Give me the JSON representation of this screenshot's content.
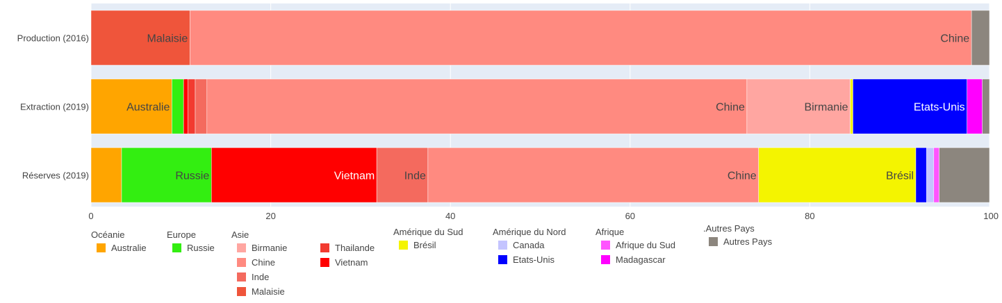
{
  "chart_data": {
    "type": "bar",
    "orientation": "horizontal",
    "barmode": "stack",
    "categories": [
      "Production (2016)",
      "Extraction (2019)",
      "Réserves (2019)"
    ],
    "xlim": [
      0,
      100
    ],
    "xticks": [
      0,
      20,
      40,
      60,
      80,
      100
    ],
    "grid": true,
    "legend_position": "bottom",
    "segments": [
      {
        "category": 0,
        "name": "Malaisie",
        "group": "Asie",
        "color": "#EF553B",
        "x0": 0.0,
        "x1": 11.0,
        "label": "Malaisie",
        "label_color": "#444444"
      },
      {
        "category": 0,
        "name": "Chine",
        "group": "Asie",
        "color": "#FF8A80",
        "x0": 11.0,
        "x1": 98.0,
        "label": "Chine",
        "label_color": "#444444"
      },
      {
        "category": 0,
        "name": "Autres Pays",
        "group": ".Autres Pays",
        "color": "#8C867E",
        "x0": 98.0,
        "x1": 100.0,
        "label": "",
        "label_color": "#444444"
      },
      {
        "category": 1,
        "name": "Australie",
        "group": "Océanie",
        "color": "#FFA500",
        "x0": 0.0,
        "x1": 9.0,
        "label": "Australie",
        "label_color": "#444444"
      },
      {
        "category": 1,
        "name": "Russie",
        "group": "Europe",
        "color": "#33EE11",
        "x0": 9.0,
        "x1": 10.3,
        "label": "",
        "label_color": "#444444"
      },
      {
        "category": 1,
        "name": "Vietnam",
        "group": "Asie",
        "color": "#FF0000",
        "x0": 10.3,
        "x1": 10.8,
        "label": "",
        "label_color": "#444444"
      },
      {
        "category": 1,
        "name": "Thailande",
        "group": "Asie",
        "color": "#F23B30",
        "x0": 10.8,
        "x1": 11.6,
        "label": "",
        "label_color": "#444444"
      },
      {
        "category": 1,
        "name": "Inde",
        "group": "Asie",
        "color": "#F46A5E",
        "x0": 11.6,
        "x1": 12.9,
        "label": "",
        "label_color": "#444444"
      },
      {
        "category": 1,
        "name": "Chine",
        "group": "Asie",
        "color": "#FF8A80",
        "x0": 12.9,
        "x1": 73.0,
        "label": "Chine",
        "label_color": "#444444"
      },
      {
        "category": 1,
        "name": "Birmanie",
        "group": "Asie",
        "color": "#FFA6A1",
        "x0": 73.0,
        "x1": 84.5,
        "label": "Birmanie",
        "label_color": "#444444"
      },
      {
        "category": 1,
        "name": "Brésil",
        "group": "Amérique du Sud",
        "color": "#F4F400",
        "x0": 84.5,
        "x1": 84.8,
        "label": "",
        "label_color": "#444444"
      },
      {
        "category": 1,
        "name": "Etats-Unis",
        "group": "Amérique du Nord",
        "color": "#0000FF",
        "x0": 84.8,
        "x1": 97.5,
        "label": "Etats-Unis",
        "label_color": "#FFFFFF"
      },
      {
        "category": 1,
        "name": "Madagascar",
        "group": "Afrique",
        "color": "#FF00FF",
        "x0": 97.5,
        "x1": 99.2,
        "label": "",
        "label_color": "#444444"
      },
      {
        "category": 1,
        "name": "Autres Pays",
        "group": ".Autres Pays",
        "color": "#8C867E",
        "x0": 99.2,
        "x1": 100.0,
        "label": "",
        "label_color": "#444444"
      },
      {
        "category": 2,
        "name": "Australie",
        "group": "Océanie",
        "color": "#FFA500",
        "x0": 0.0,
        "x1": 3.4,
        "label": "",
        "label_color": "#444444"
      },
      {
        "category": 2,
        "name": "Russie",
        "group": "Europe",
        "color": "#33EE11",
        "x0": 3.4,
        "x1": 13.4,
        "label": "Russie",
        "label_color": "#444444"
      },
      {
        "category": 2,
        "name": "Vietnam",
        "group": "Asie",
        "color": "#FF0000",
        "x0": 13.4,
        "x1": 31.8,
        "label": "Vietnam",
        "label_color": "#FFFFFF"
      },
      {
        "category": 2,
        "name": "Inde",
        "group": "Asie",
        "color": "#F46A5E",
        "x0": 31.8,
        "x1": 37.5,
        "label": "Inde",
        "label_color": "#444444"
      },
      {
        "category": 2,
        "name": "Chine",
        "group": "Asie",
        "color": "#FF8A80",
        "x0": 37.5,
        "x1": 74.3,
        "label": "Chine",
        "label_color": "#444444"
      },
      {
        "category": 2,
        "name": "Brésil",
        "group": "Amérique du Sud",
        "color": "#F4F400",
        "x0": 74.3,
        "x1": 91.8,
        "label": "Brésil",
        "label_color": "#444444"
      },
      {
        "category": 2,
        "name": "Etats-Unis",
        "group": "Amérique du Nord",
        "color": "#0000FF",
        "x0": 91.8,
        "x1": 93.0,
        "label": "",
        "label_color": "#444444"
      },
      {
        "category": 2,
        "name": "Canada",
        "group": "Amérique du Nord",
        "color": "#C4C4FF",
        "x0": 93.0,
        "x1": 93.8,
        "label": "",
        "label_color": "#444444"
      },
      {
        "category": 2,
        "name": "Afrique du Sud",
        "group": "Afrique",
        "color": "#FF55FF",
        "x0": 93.8,
        "x1": 94.4,
        "label": "",
        "label_color": "#444444"
      },
      {
        "category": 2,
        "name": "Autres Pays",
        "group": ".Autres Pays",
        "color": "#8C867E",
        "x0": 94.4,
        "x1": 100.0,
        "label": "",
        "label_color": "#444444"
      }
    ],
    "legend": [
      {
        "title": "Océanie",
        "columns": [
          [
            {
              "name": "Australie",
              "color": "#FFA500"
            }
          ]
        ]
      },
      {
        "title": "Europe",
        "columns": [
          [
            {
              "name": "Russie",
              "color": "#33EE11"
            }
          ]
        ]
      },
      {
        "title": "Asie",
        "columns": [
          [
            {
              "name": "Birmanie",
              "color": "#FFA6A1"
            },
            {
              "name": "Chine",
              "color": "#FF8A80"
            },
            {
              "name": "Inde",
              "color": "#F46A5E"
            },
            {
              "name": "Malaisie",
              "color": "#EF553B"
            }
          ],
          [
            {
              "name": "Thailande",
              "color": "#F23B30"
            },
            {
              "name": "Vietnam",
              "color": "#FF0000"
            }
          ]
        ]
      },
      {
        "title": "Amérique du Sud",
        "columns": [
          [
            {
              "name": "Brésil",
              "color": "#F4F400"
            }
          ]
        ]
      },
      {
        "title": "Amérique du Nord",
        "columns": [
          [
            {
              "name": "Canada",
              "color": "#C4C4FF"
            },
            {
              "name": "Etats-Unis",
              "color": "#0000FF"
            }
          ]
        ]
      },
      {
        "title": "Afrique",
        "columns": [
          [
            {
              "name": "Afrique du Sud",
              "color": "#FF55FF"
            },
            {
              "name": "Madagascar",
              "color": "#FF00FF"
            }
          ]
        ]
      },
      {
        "title": ".Autres Pays",
        "columns": [
          [
            {
              "name": "Autres Pays",
              "color": "#8C867E"
            }
          ]
        ]
      }
    ]
  }
}
